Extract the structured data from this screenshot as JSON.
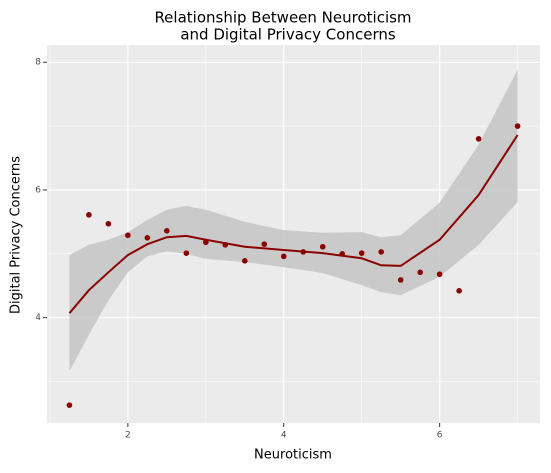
{
  "chart_data": {
    "type": "scatter",
    "title": "Relationship Between Neuroticism",
    "subtitle": "and Digital Privacy Concerns",
    "x_label": "Neuroticism",
    "y_label": "Digital Privacy Concerns",
    "x": [
      1.25,
      1.5,
      1.75,
      2.0,
      2.25,
      2.5,
      2.75,
      3.0,
      3.25,
      3.5,
      3.75,
      4.0,
      4.25,
      4.5,
      4.75,
      5.0,
      5.25,
      5.5,
      5.75,
      6.0,
      6.25,
      6.5,
      7.0
    ],
    "values": [
      2.63,
      5.61,
      5.47,
      5.29,
      5.25,
      5.36,
      5.01,
      5.18,
      5.14,
      4.89,
      5.15,
      4.96,
      5.03,
      5.11,
      5.0,
      5.01,
      5.03,
      4.59,
      4.71,
      4.68,
      4.42,
      6.8,
      7.0
    ],
    "color": "#8b0000",
    "smooth": {
      "x": [
        1.25,
        1.5,
        1.75,
        2.0,
        2.25,
        2.5,
        2.75,
        3.0,
        3.5,
        4.0,
        4.5,
        5.0,
        5.25,
        5.5,
        6.0,
        6.5,
        7.0
      ],
      "values": [
        4.07,
        4.43,
        4.71,
        4.98,
        5.15,
        5.26,
        5.28,
        5.22,
        5.11,
        5.06,
        5.01,
        4.93,
        4.82,
        4.81,
        5.22,
        5.92,
        6.86
      ],
      "lower": [
        3.16,
        3.73,
        4.27,
        4.71,
        4.96,
        5.04,
        5.0,
        4.92,
        4.87,
        4.79,
        4.7,
        4.51,
        4.4,
        4.35,
        4.64,
        5.14,
        5.81
      ],
      "upper": [
        4.98,
        5.14,
        5.22,
        5.34,
        5.53,
        5.69,
        5.75,
        5.69,
        5.5,
        5.37,
        5.33,
        5.34,
        5.26,
        5.29,
        5.8,
        6.71,
        7.88
      ],
      "color": "#8b0000",
      "band_color": "#c4c4c4"
    },
    "xlim": [
      0.9625,
      7.2875
    ],
    "ylim": [
      2.35,
      8.27
    ],
    "xticks": [
      2,
      4,
      6
    ],
    "yticks": [
      4,
      6,
      8
    ],
    "grid": true,
    "panel_color": "#ebebeb"
  }
}
